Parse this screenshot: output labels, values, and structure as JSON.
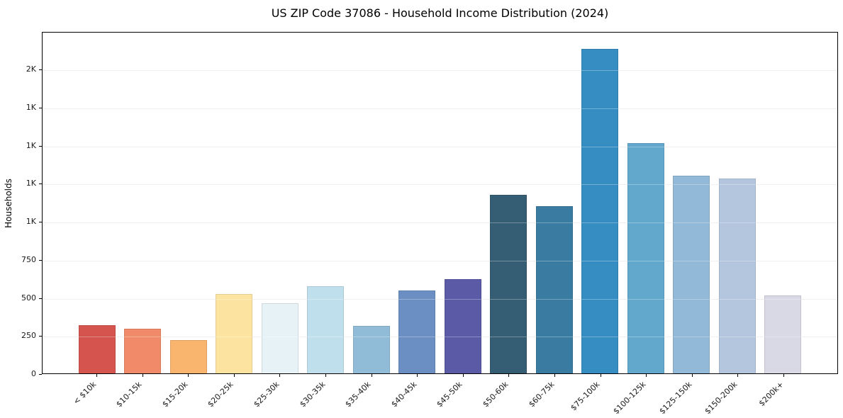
{
  "chart_data": {
    "type": "bar",
    "title": "US ZIP Code 37086 - Household Income Distribution (2024)",
    "xlabel": "",
    "ylabel": "Households",
    "categories": [
      "< $10k",
      "$10-15k",
      "$15-20k",
      "$20-25k",
      "$25-30k",
      "$30-35k",
      "$35-40k",
      "$40-45k",
      "$45-50k",
      "$50-60k",
      "$60-75k",
      "$75-100k",
      "$100-125k",
      "$125-150k",
      "$150-200k",
      "$200k+"
    ],
    "values": [
      320,
      296,
      222,
      524,
      462,
      576,
      311,
      545,
      620,
      1176,
      1101,
      2141,
      1518,
      1306,
      1286,
      512
    ],
    "bar_colors": [
      "#d5544e",
      "#f18a68",
      "#f9b46e",
      "#fce4a0",
      "#e7f2f7",
      "#c0dfec",
      "#90bcd8",
      "#6b8fc3",
      "#5b5aa6",
      "#355d73",
      "#3a7ca1",
      "#368dc2",
      "#62a8cc",
      "#92b9d7",
      "#b4c6de",
      "#d8d9e4"
    ],
    "ylim": [
      0,
      2248
    ],
    "xlim": [
      -1.19,
      16.19
    ],
    "bar_width": 0.8,
    "yticks": [
      {
        "value": 0,
        "label": "0"
      },
      {
        "value": 250,
        "label": "250"
      },
      {
        "value": 500,
        "label": "500"
      },
      {
        "value": 750,
        "label": "750"
      },
      {
        "value": 1000,
        "label": "1K"
      },
      {
        "value": 1250,
        "label": "1K"
      },
      {
        "value": 1500,
        "label": "1K"
      },
      {
        "value": 1750,
        "label": "1K"
      },
      {
        "value": 2000,
        "label": "2K"
      }
    ],
    "grid": "horizontal",
    "legend": "none",
    "background_color": "#ffffff"
  }
}
